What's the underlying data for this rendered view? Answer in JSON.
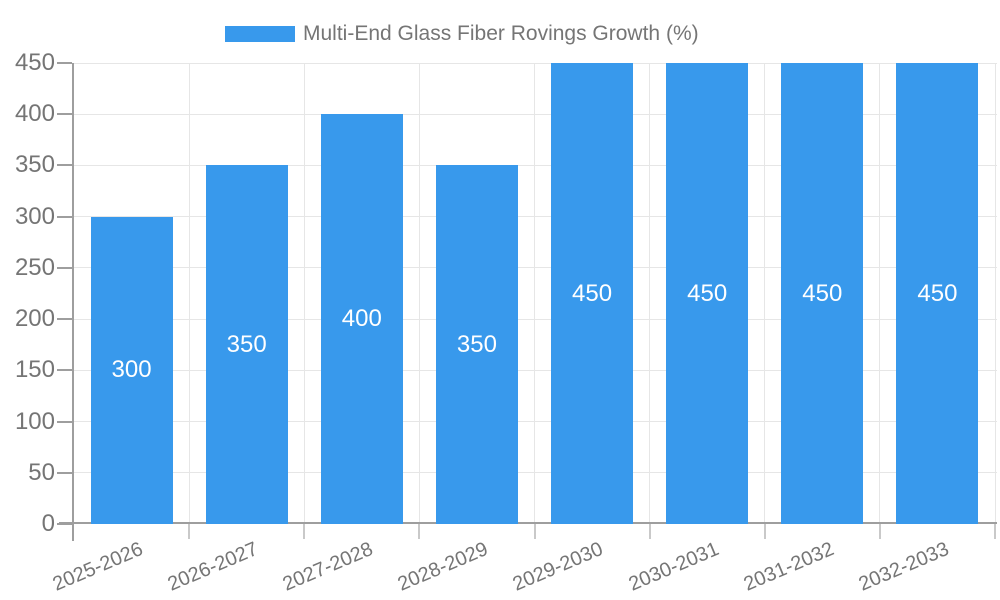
{
  "legend": {
    "label": "Multi-End Glass Fiber Rovings Growth (%)"
  },
  "chart_data": {
    "type": "bar",
    "title": "Multi-End Glass Fiber Rovings Growth (%)",
    "categories": [
      "2025-2026",
      "2026-2027",
      "2027-2028",
      "2028-2029",
      "2029-2030",
      "2030-2031",
      "2031-2032",
      "2032-2033"
    ],
    "series": [
      {
        "name": "Multi-End Glass Fiber Rovings Growth (%)",
        "values": [
          300,
          350,
          400,
          350,
          450,
          450,
          450,
          450
        ]
      }
    ],
    "value_labels": [
      "300",
      "350",
      "400",
      "350",
      "450",
      "450",
      "450",
      "450"
    ],
    "xlabel": "",
    "ylabel": "",
    "ylim": [
      0,
      450
    ],
    "ytick_interval": 50,
    "ytick_labels": [
      "0",
      "50",
      "100",
      "150",
      "200",
      "250",
      "300",
      "350",
      "400",
      "450"
    ],
    "grid": true,
    "legend_position": "top",
    "colors": {
      "bar": "#3899ec",
      "value_label": "#ffffff",
      "axis_text": "#757575",
      "axis_line": "#9e9e9e",
      "gridline": "#e6e6e6",
      "x_tick": "#c9c9c9",
      "y_tick": "#9e9e9e"
    }
  }
}
